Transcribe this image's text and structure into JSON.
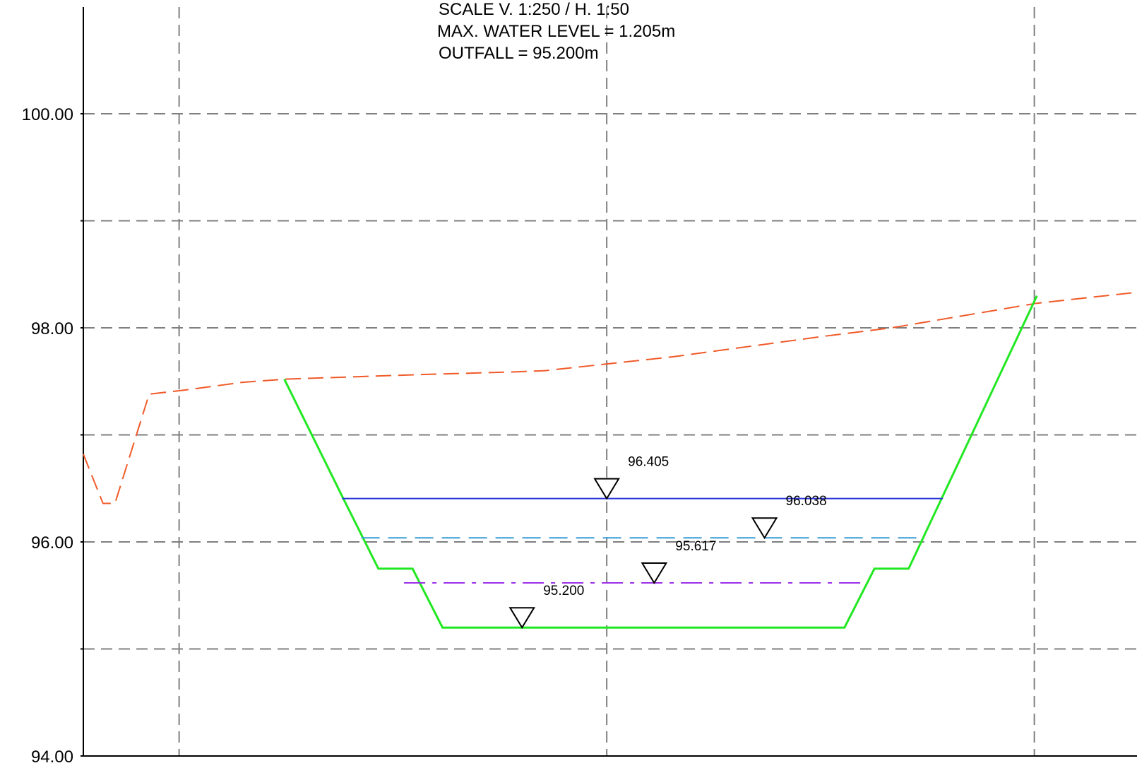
{
  "notes": {
    "scale": "SCALE V. 1:250 / H. 1:50",
    "max_water_level": "MAX. WATER LEVEL = 1.205m",
    "outfall": "OUTFALL = 95.200m"
  },
  "colors": {
    "grid": "#7f7f7f",
    "axis": "#000000",
    "ground": "#f05a28",
    "section": "#22e822",
    "max_level": "#2b36d9",
    "mid_level": "#3a9bd6",
    "low_level": "#9b30e8",
    "marker": "#000000"
  },
  "chart_data": {
    "type": "line",
    "ylim": [
      94,
      101
    ],
    "y_ticks": [
      {
        "value": 94,
        "label": "94.00"
      },
      {
        "value": 95,
        "label": ""
      },
      {
        "value": 96,
        "label": "96.00"
      },
      {
        "value": 97,
        "label": ""
      },
      {
        "value": 98,
        "label": "98.00"
      },
      {
        "value": 99,
        "label": ""
      },
      {
        "value": 100,
        "label": "100.00"
      }
    ],
    "x_grid": [
      2.24,
      12.24,
      22.24
    ],
    "series": [
      {
        "id": "ground",
        "style": "dashed",
        "points": [
          [
            0,
            96.82
          ],
          [
            0.26,
            96.56
          ],
          [
            0.46,
            96.36
          ],
          [
            0.74,
            96.36
          ],
          [
            1.54,
            97.38
          ],
          [
            2.4,
            97.42
          ],
          [
            3.7,
            97.49
          ],
          [
            4.7,
            97.52
          ],
          [
            7.6,
            97.56
          ],
          [
            10.2,
            97.59
          ],
          [
            10.8,
            97.6
          ],
          [
            13.8,
            97.73
          ],
          [
            17.3,
            97.92
          ],
          [
            18.9,
            98.0
          ],
          [
            22.3,
            98.23
          ],
          [
            24.6,
            98.33
          ],
          [
            27.0,
            98.46
          ]
        ]
      },
      {
        "id": "section",
        "style": "solid",
        "points": [
          [
            4.7,
            97.52
          ],
          [
            6.05,
            96.43
          ],
          [
            6.9,
            95.75
          ],
          [
            7.7,
            95.75
          ],
          [
            8.4,
            95.2
          ],
          [
            17.8,
            95.2
          ],
          [
            18.5,
            95.75
          ],
          [
            19.3,
            95.75
          ],
          [
            20.1,
            96.43
          ],
          [
            22.3,
            98.3
          ]
        ]
      },
      {
        "id": "max_level",
        "style": "solid",
        "points": [
          [
            6.05,
            96.405
          ],
          [
            20.1,
            96.405
          ]
        ]
      },
      {
        "id": "mid_level",
        "style": "dashed",
        "points": [
          [
            6.5,
            96.038
          ],
          [
            19.6,
            96.038
          ]
        ]
      },
      {
        "id": "low_level",
        "style": "dash-dot",
        "points": [
          [
            7.5,
            95.617
          ],
          [
            18.3,
            95.617
          ]
        ]
      }
    ],
    "level_markers": [
      {
        "id": "marker-max",
        "x": 12.24,
        "y": 96.405,
        "label": "96.405"
      },
      {
        "id": "marker-mid",
        "x": 15.93,
        "y": 96.038,
        "label": "96.038"
      },
      {
        "id": "marker-low",
        "x": 13.35,
        "y": 95.617,
        "label": "95.617"
      },
      {
        "id": "marker-outfall",
        "x": 10.26,
        "y": 95.2,
        "label": "95.200"
      }
    ]
  }
}
